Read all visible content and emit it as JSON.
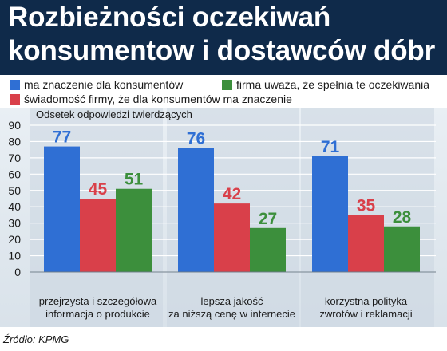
{
  "title": [
    "Rozbieżności oczekiwań",
    "konsumentow i dostawców dóbr"
  ],
  "subtitle": "Odsetek odpowiedzi twierdzących",
  "source": "Źródło: KPMG",
  "chart_data": {
    "type": "bar",
    "title": "Rozbieżności oczekiwań konsumentow i dostawców dóbr",
    "subtitle": "Odsetek odpowiedzi twierdzących",
    "categories": [
      [
        "przejrzysta i szczegółowa",
        "informacja o produkcie"
      ],
      [
        "lepsza jakość",
        "za niższą cenę w internecie"
      ],
      [
        "korzystna polityka",
        "zwrotów i reklamacji"
      ]
    ],
    "series": [
      {
        "name": "ma znaczenie dla konsumentów",
        "color": "#2f6fd4",
        "values": [
          77,
          76,
          71
        ]
      },
      {
        "name": "świadomość firmy, że dla konsumentów ma znaczenie",
        "color": "#d9404a",
        "values": [
          45,
          42,
          35
        ]
      },
      {
        "name": "firma uważa, że spełnia te oczekiwania",
        "color": "#3c8f3c",
        "values": [
          51,
          27,
          28
        ]
      }
    ],
    "ylim": [
      0,
      90
    ],
    "yticks": [
      0,
      10,
      20,
      30,
      40,
      50,
      60,
      70,
      80,
      90
    ],
    "grid": true,
    "legend_position": "top"
  }
}
